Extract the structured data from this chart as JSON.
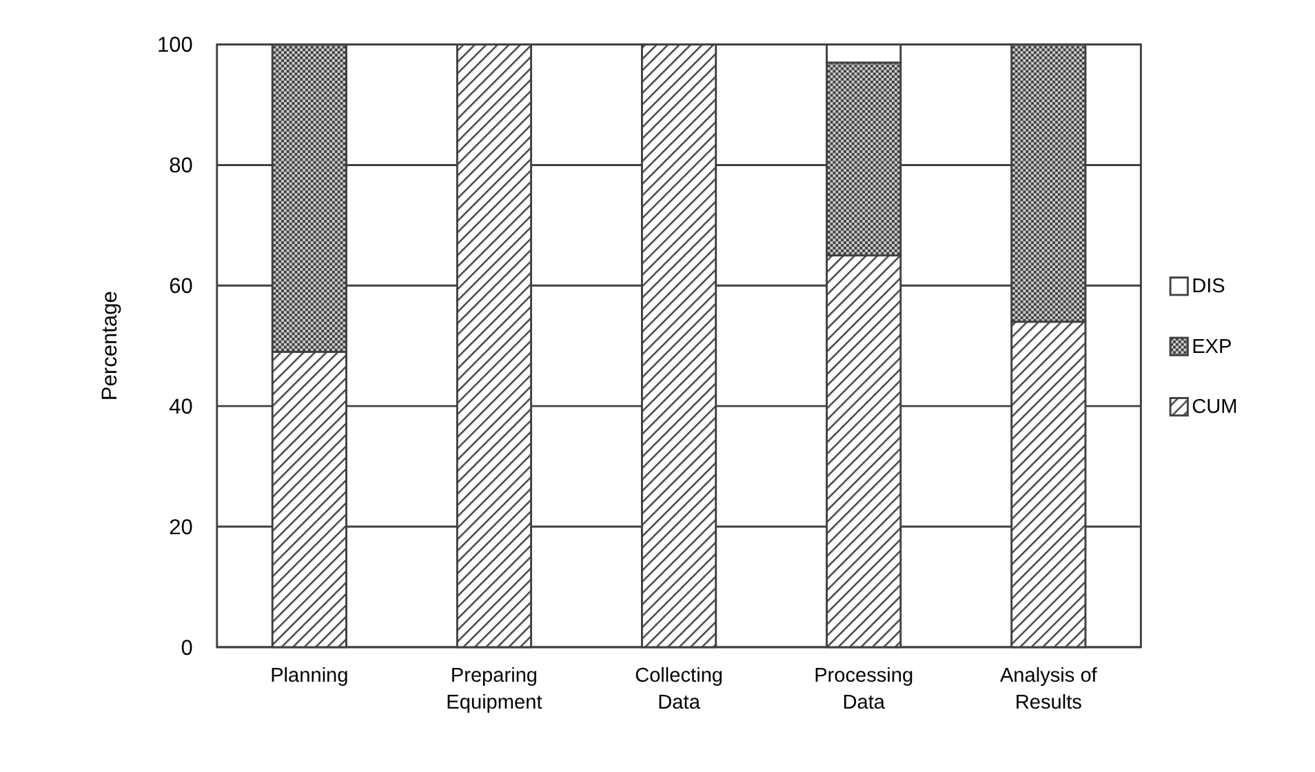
{
  "chart_data": {
    "type": "bar",
    "stacked": true,
    "ylabel": "Percentage",
    "categories": [
      "Planning",
      "Preparing Equipment",
      "Collecting Data",
      "Processing Data",
      "Analysis of Results"
    ],
    "series": [
      {
        "name": "CUM",
        "color": "#404040",
        "values": [
          49,
          100,
          100,
          65,
          54
        ]
      },
      {
        "name": "EXP",
        "color": "#404040",
        "values": [
          51,
          0,
          0,
          32,
          46
        ]
      },
      {
        "name": "DIS",
        "color": "#ffffff",
        "values": [
          0,
          0,
          0,
          3,
          0
        ]
      }
    ],
    "ylim": [
      0,
      100
    ],
    "yticks": [
      0,
      20,
      40,
      60,
      80,
      100
    ],
    "grid": "y",
    "legend": "right"
  }
}
